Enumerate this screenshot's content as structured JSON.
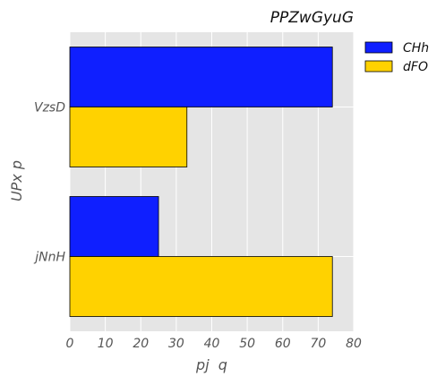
{
  "chart_data": {
    "type": "bar",
    "orientation": "horizontal",
    "title": "PPZwGyuG",
    "xlabel": "pj  q",
    "ylabel": "UPx p",
    "categories": [
      "VzsD",
      "jNnH"
    ],
    "series": [
      {
        "name": "CHh",
        "color": "#0f1fff",
        "values": [
          74,
          25
        ]
      },
      {
        "name": "dFO",
        "color": "#ffd200",
        "values": [
          33,
          74
        ]
      }
    ],
    "xlim": [
      0,
      80
    ],
    "xticks": [
      0,
      10,
      20,
      30,
      40,
      50,
      60,
      70,
      80
    ],
    "grid": true,
    "legend_position": "outside-top-right",
    "background_color": "#e5e5e5"
  }
}
